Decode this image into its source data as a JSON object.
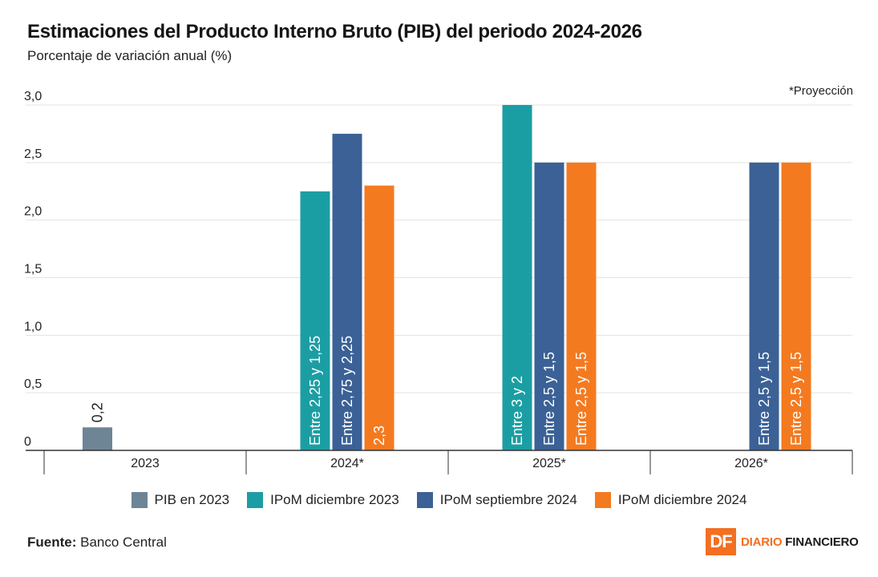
{
  "title": "Estimaciones del Producto Interno Bruto (PIB) del periodo 2024-2026",
  "subtitle": "Porcentaje de variación anual (%)",
  "note": "*Proyección",
  "source_label": "Fuente:",
  "source_value": "Banco Central",
  "brand": {
    "mark": "DF",
    "name_part1": "DIARIO",
    "name_part2": "FINANCIERO"
  },
  "colors": {
    "PIB en 2023": "#6e8595",
    "IPoM diciembre 2023": "#1b9ea3",
    "IPoM septiembre 2024": "#3b6196",
    "IPoM diciembre 2024": "#f47a20",
    "grid": "#e3e3e3",
    "axis": "#333333"
  },
  "legend": [
    {
      "label": "PIB en 2023",
      "color": "#6e8595"
    },
    {
      "label": "IPoM diciembre 2023",
      "color": "#1b9ea3"
    },
    {
      "label": "IPoM septiembre 2024",
      "color": "#3b6196"
    },
    {
      "label": "IPoM diciembre 2024",
      "color": "#f47a20"
    }
  ],
  "chart_data": {
    "type": "bar",
    "title": "Estimaciones del Producto Interno Bruto (PIB) del periodo 2024-2026",
    "ylabel": "Porcentaje de variación anual (%)",
    "xlabel": "",
    "ylim": [
      0,
      3.0
    ],
    "yticks": [
      0,
      0.5,
      1.0,
      1.5,
      2.0,
      2.5,
      3.0
    ],
    "ytick_labels": [
      "0",
      "0,5",
      "1,0",
      "1,5",
      "2,0",
      "2,5",
      "3,0"
    ],
    "grid": true,
    "categories": [
      "2023",
      "2024*",
      "2025*",
      "2026*"
    ],
    "groups": [
      {
        "category": "2023",
        "bars": [
          {
            "series": "PIB en 2023",
            "value": 0.2,
            "label": "0,2",
            "label_outside": true
          }
        ]
      },
      {
        "category": "2024*",
        "bars": [
          {
            "series": "IPoM diciembre 2023",
            "value": 2.25,
            "label": "Entre 2,25 y 1,25"
          },
          {
            "series": "IPoM septiembre 2024",
            "value": 2.75,
            "label": "Entre 2,75 y 2,25"
          },
          {
            "series": "IPoM diciembre 2024",
            "value": 2.3,
            "label": "2,3"
          }
        ]
      },
      {
        "category": "2025*",
        "bars": [
          {
            "series": "IPoM diciembre 2023",
            "value": 3.0,
            "label": "Entre 3 y 2"
          },
          {
            "series": "IPoM septiembre 2024",
            "value": 2.5,
            "label": "Entre 2,5 y 1,5"
          },
          {
            "series": "IPoM diciembre 2024",
            "value": 2.5,
            "label": "Entre 2,5 y 1,5"
          }
        ]
      },
      {
        "category": "2026*",
        "bars": [
          {
            "series": "IPoM septiembre 2024",
            "value": 2.5,
            "label": "Entre 2,5 y 1,5"
          },
          {
            "series": "IPoM diciembre 2024",
            "value": 2.5,
            "label": "Entre 2,5 y 1,5"
          }
        ]
      }
    ]
  }
}
